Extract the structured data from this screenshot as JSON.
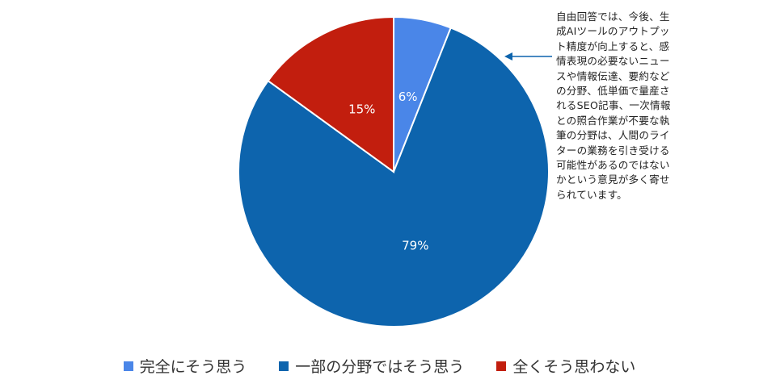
{
  "chart_data": {
    "type": "pie",
    "categories": [
      "完全にそう思う",
      "一部の分野ではそう思う",
      "全くそう思わない"
    ],
    "values": [
      6,
      79,
      15
    ],
    "data_labels": [
      "6%",
      "79%",
      "15%"
    ],
    "colors": [
      "#4a86e8",
      "#0d64ad",
      "#c21e0e"
    ],
    "legend_position": "bottom",
    "start": "12 o'clock, clockwise"
  },
  "annotation": {
    "text": "自由回答では、今後、生成AIツールのアウトプット精度が向上すると、感情表現の必要ないニュースや情報伝達、要約などの分野、低単価で量産されるSEO記事、一次情報との照合作業が不要な執筆の分野は、人間のライターの業務を引き受ける可能性があるのではないかという意見が多く寄せられています。"
  }
}
